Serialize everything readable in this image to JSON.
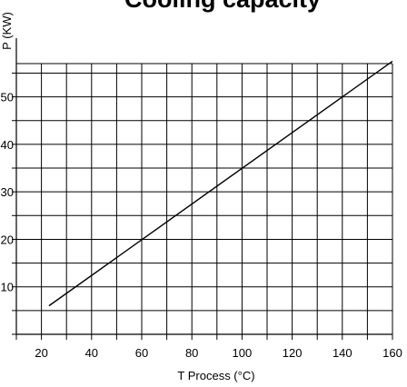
{
  "chart_data": {
    "type": "line",
    "title": "Cooling capacity",
    "xlabel": "T Process  (°C)",
    "ylabel": "P (KW)",
    "xlim": [
      10,
      160
    ],
    "ylim": [
      0,
      57
    ],
    "x_ticks": [
      "20",
      "40",
      "60",
      "80",
      "100",
      "120",
      "140",
      "160"
    ],
    "y_ticks": [
      "10",
      "20",
      "30",
      "40",
      "50"
    ],
    "y_tick_values": [
      10,
      20,
      30,
      40,
      50
    ],
    "x_tick_values": [
      20,
      40,
      60,
      80,
      100,
      120,
      140,
      160
    ],
    "grid": true,
    "series": [
      {
        "x": [
          23,
          160
        ],
        "y": [
          6,
          57.5
        ],
        "color": "#000000"
      }
    ]
  }
}
